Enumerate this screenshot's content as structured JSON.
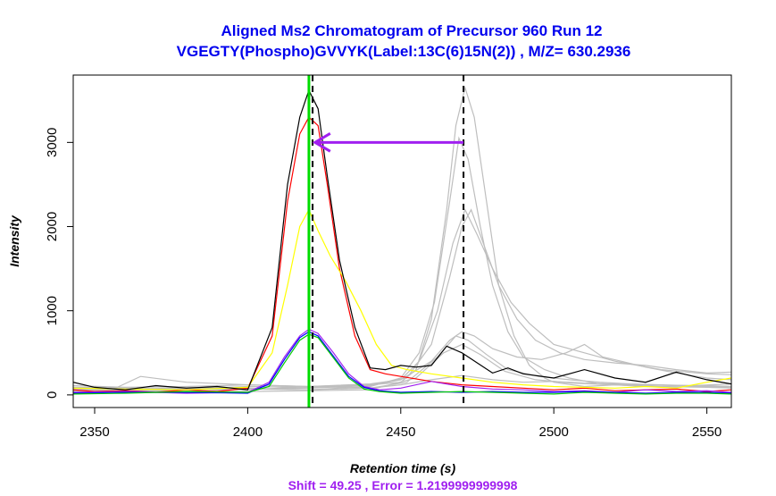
{
  "chart_data": {
    "type": "line",
    "title_line1": "Aligned Ms2 Chromatogram of Precursor 960 Run 12",
    "title_line2": "VGEGTY(Phospho)GVVYK(Label:13C(6)15N(2)) , M/Z=  630.2936",
    "xlabel": "Retention time (s)",
    "ylabel": "Intensity",
    "xlim": [
      2343,
      2558
    ],
    "ylim": [
      -150,
      3800
    ],
    "x_ticks": [
      2350,
      2400,
      2450,
      2500,
      2550
    ],
    "y_ticks": [
      0,
      1000,
      2000,
      3000
    ],
    "y_tick_labels": [
      "0",
      "1000",
      "2000",
      "3000"
    ],
    "grid": false,
    "annotation": "Shift = 49.25 , Error = 1.2199999999998",
    "vlines": [
      {
        "x": 2420.0,
        "color": "#00dd00",
        "style": "solid"
      },
      {
        "x": 2421.2,
        "color": "#000000",
        "style": "dashed"
      },
      {
        "x": 2470.5,
        "color": "#000000",
        "style": "dashed"
      }
    ],
    "arrow": {
      "x_from": 2470.5,
      "x_to": 2422,
      "y": 3000,
      "color": "#a020f0"
    },
    "series": [
      {
        "color": "#000000",
        "x": [
          2343,
          2350,
          2360,
          2370,
          2380,
          2390,
          2400,
          2408,
          2413,
          2417,
          2420,
          2423,
          2426,
          2430,
          2435,
          2440,
          2445,
          2450,
          2455,
          2460,
          2465,
          2470,
          2475,
          2480,
          2485,
          2490,
          2500,
          2510,
          2520,
          2530,
          2540,
          2550,
          2558
        ],
        "y": [
          150,
          90,
          60,
          110,
          80,
          100,
          60,
          800,
          2500,
          3300,
          3620,
          3400,
          2600,
          1600,
          800,
          320,
          300,
          350,
          330,
          350,
          580,
          500,
          380,
          260,
          320,
          250,
          200,
          300,
          200,
          150,
          270,
          180,
          130
        ]
      },
      {
        "color": "#ff0000",
        "x": [
          2343,
          2350,
          2360,
          2370,
          2380,
          2390,
          2400,
          2408,
          2413,
          2417,
          2420,
          2423,
          2426,
          2430,
          2435,
          2440,
          2445,
          2450,
          2460,
          2470,
          2480,
          2490,
          2500,
          2510,
          2520,
          2530,
          2540,
          2550,
          2558
        ],
        "y": [
          60,
          40,
          50,
          30,
          60,
          40,
          80,
          700,
          2300,
          3100,
          3300,
          3200,
          2500,
          1500,
          700,
          300,
          250,
          220,
          160,
          120,
          100,
          80,
          60,
          80,
          50,
          60,
          70,
          40,
          60
        ]
      },
      {
        "color": "#ffff00",
        "x": [
          2343,
          2360,
          2380,
          2400,
          2408,
          2413,
          2417,
          2420,
          2423,
          2427,
          2432,
          2437,
          2442,
          2447,
          2452,
          2460,
          2470,
          2480,
          2490,
          2500,
          2510,
          2520,
          2530,
          2540,
          2550,
          2558
        ],
        "y": [
          80,
          70,
          60,
          90,
          500,
          1300,
          2000,
          2200,
          1950,
          1650,
          1350,
          1000,
          600,
          350,
          300,
          250,
          200,
          150,
          120,
          100,
          90,
          80,
          100,
          80,
          150,
          200
        ]
      },
      {
        "color": "#a020f0",
        "x": [
          2343,
          2360,
          2380,
          2400,
          2407,
          2412,
          2417,
          2420,
          2423,
          2428,
          2433,
          2438,
          2443,
          2450,
          2460,
          2470,
          2480,
          2490,
          2500,
          2510,
          2520,
          2530,
          2540,
          2550,
          2558
        ],
        "y": [
          30,
          40,
          20,
          30,
          150,
          450,
          700,
          780,
          730,
          500,
          250,
          100,
          60,
          80,
          160,
          100,
          70,
          60,
          40,
          50,
          30,
          60,
          40,
          50,
          30
        ]
      },
      {
        "color": "#0000ff",
        "x": [
          2343,
          2360,
          2380,
          2400,
          2407,
          2412,
          2417,
          2420,
          2423,
          2428,
          2433,
          2438,
          2443,
          2450,
          2460,
          2470,
          2480,
          2490,
          2500,
          2510,
          2520,
          2530,
          2540,
          2550,
          2558
        ],
        "y": [
          20,
          30,
          30,
          20,
          130,
          420,
          680,
          750,
          700,
          460,
          220,
          90,
          50,
          30,
          40,
          30,
          40,
          30,
          30,
          40,
          30,
          20,
          30,
          30,
          20
        ]
      },
      {
        "color": "#00cc00",
        "x": [
          2343,
          2360,
          2380,
          2400,
          2407,
          2412,
          2417,
          2420,
          2423,
          2428,
          2433,
          2438,
          2443,
          2450,
          2460,
          2470,
          2480,
          2490,
          2500,
          2510,
          2520,
          2530,
          2540,
          2550,
          2558
        ],
        "y": [
          10,
          20,
          40,
          30,
          100,
          380,
          650,
          720,
          680,
          440,
          200,
          70,
          40,
          20,
          30,
          40,
          30,
          20,
          10,
          30,
          20,
          10,
          20,
          20,
          10
        ]
      },
      {
        "color": "#bebebe",
        "x": [
          2343,
          2355,
          2365,
          2380,
          2400,
          2420,
          2440,
          2450,
          2455,
          2460,
          2465,
          2468,
          2471,
          2474,
          2478,
          2482,
          2487,
          2492,
          2497,
          2500,
          2510,
          2520,
          2530,
          2540,
          2550,
          2558
        ],
        "y": [
          60,
          50,
          220,
          150,
          120,
          100,
          120,
          150,
          300,
          900,
          2200,
          3200,
          3650,
          3300,
          2300,
          1300,
          700,
          350,
          200,
          150,
          100,
          120,
          100,
          90,
          110,
          100
        ]
      },
      {
        "color": "#bebebe",
        "x": [
          2343,
          2360,
          2380,
          2400,
          2420,
          2440,
          2450,
          2456,
          2461,
          2466,
          2469,
          2472,
          2476,
          2480,
          2485,
          2490,
          2497,
          2505,
          2515,
          2530,
          2545,
          2558
        ],
        "y": [
          40,
          50,
          60,
          80,
          60,
          100,
          200,
          500,
          1100,
          2300,
          3050,
          2800,
          2000,
          1300,
          750,
          450,
          300,
          200,
          130,
          120,
          110,
          130
        ]
      },
      {
        "color": "#bebebe",
        "x": [
          2343,
          2360,
          2380,
          2400,
          2420,
          2440,
          2450,
          2456,
          2462,
          2467,
          2471,
          2475,
          2480,
          2486,
          2492,
          2500,
          2510,
          2520,
          2535,
          2550,
          2558
        ],
        "y": [
          80,
          60,
          90,
          70,
          80,
          110,
          180,
          400,
          1000,
          1800,
          2200,
          1900,
          1500,
          1100,
          850,
          600,
          500,
          400,
          300,
          250,
          240
        ]
      },
      {
        "color": "#bebebe",
        "x": [
          2343,
          2360,
          2380,
          2400,
          2420,
          2440,
          2452,
          2460,
          2466,
          2470,
          2473,
          2477,
          2482,
          2488,
          2494,
          2502,
          2510,
          2520,
          2530,
          2540,
          2550,
          2558
        ],
        "y": [
          90,
          80,
          70,
          100,
          90,
          120,
          200,
          600,
          1400,
          2000,
          2200,
          1800,
          1300,
          900,
          650,
          500,
          420,
          380,
          350,
          300,
          260,
          270
        ]
      },
      {
        "color": "#bebebe",
        "x": [
          2343,
          2360,
          2380,
          2400,
          2420,
          2440,
          2450,
          2460,
          2466,
          2470,
          2474,
          2480,
          2488,
          2496,
          2504,
          2510,
          2516,
          2522,
          2530,
          2540,
          2550,
          2558
        ],
        "y": [
          70,
          60,
          80,
          60,
          100,
          130,
          180,
          400,
          650,
          750,
          700,
          550,
          450,
          420,
          500,
          600,
          450,
          400,
          330,
          260,
          200,
          180
        ]
      },
      {
        "color": "#bebebe",
        "x": [
          2343,
          2360,
          2380,
          2400,
          2420,
          2440,
          2452,
          2462,
          2468,
          2472,
          2478,
          2485,
          2495,
          2505,
          2515,
          2525,
          2535,
          2545,
          2558
        ],
        "y": [
          50,
          60,
          40,
          70,
          60,
          80,
          150,
          450,
          700,
          650,
          480,
          300,
          220,
          180,
          150,
          130,
          120,
          110,
          100
        ]
      },
      {
        "color": "#bebebe",
        "x": [
          2343,
          2360,
          2380,
          2400,
          2420,
          2440,
          2455,
          2464,
          2470,
          2476,
          2484,
          2494,
          2506,
          2520,
          2535,
          2550,
          2558
        ],
        "y": [
          30,
          40,
          50,
          40,
          50,
          60,
          200,
          500,
          600,
          480,
          280,
          180,
          140,
          120,
          100,
          90,
          80
        ]
      },
      {
        "color": "#bebebe",
        "x": [
          2343,
          2360,
          2380,
          2400,
          2420,
          2440,
          2450,
          2460,
          2470,
          2480,
          2490,
          2500,
          2510,
          2520,
          2530,
          2540,
          2550,
          2558
        ],
        "y": [
          110,
          90,
          100,
          120,
          100,
          80,
          120,
          180,
          230,
          180,
          150,
          160,
          140,
          130,
          120,
          110,
          100,
          90
        ]
      }
    ]
  }
}
